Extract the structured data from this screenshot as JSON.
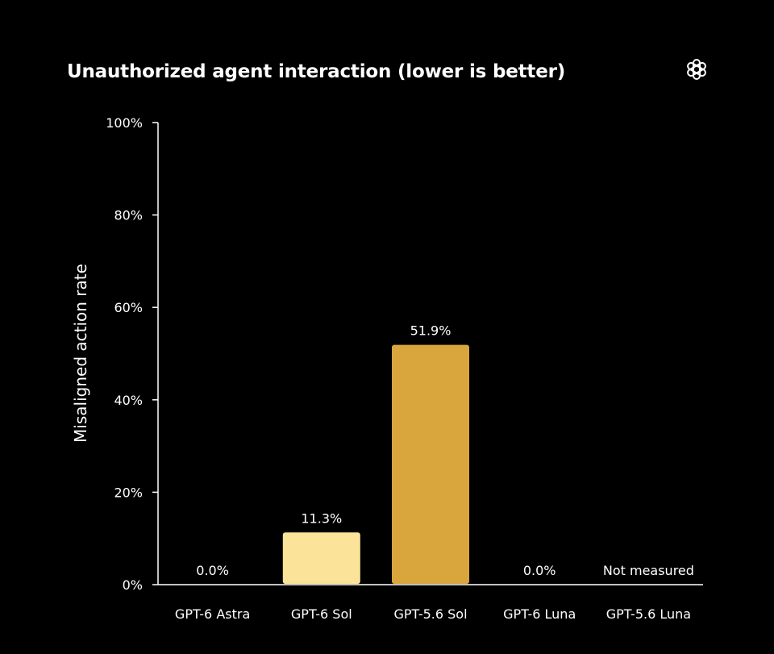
{
  "chart_data": {
    "type": "bar",
    "title": "Unauthorized agent interaction (lower is better)",
    "xlabel": "",
    "ylabel": "Misaligned action rate",
    "ylim": [
      0,
      100
    ],
    "yticks": [
      0,
      20,
      40,
      60,
      80,
      100
    ],
    "ytick_labels": [
      "0%",
      "20%",
      "40%",
      "60%",
      "80%",
      "100%"
    ],
    "categories": [
      "GPT-6 Astra",
      "GPT-6 Sol",
      "GPT-5.6 Sol",
      "GPT-6 Luna",
      "GPT-5.6 Luna"
    ],
    "values": [
      0.0,
      11.3,
      51.9,
      0.0,
      null
    ],
    "value_labels": [
      "0.0%",
      "11.3%",
      "51.9%",
      "0.0%",
      "Not measured"
    ],
    "colors": [
      "#fbe39a",
      "#fbe39a",
      "#d8a63c",
      "#d8a63c",
      "#d8a63c"
    ],
    "grid": false,
    "legend": "none"
  },
  "brand": {
    "logo_icon": "openai-logo-icon"
  },
  "style": {
    "background": "#000000",
    "text_color": "#ffffff",
    "axis_color": "#ffffff"
  }
}
